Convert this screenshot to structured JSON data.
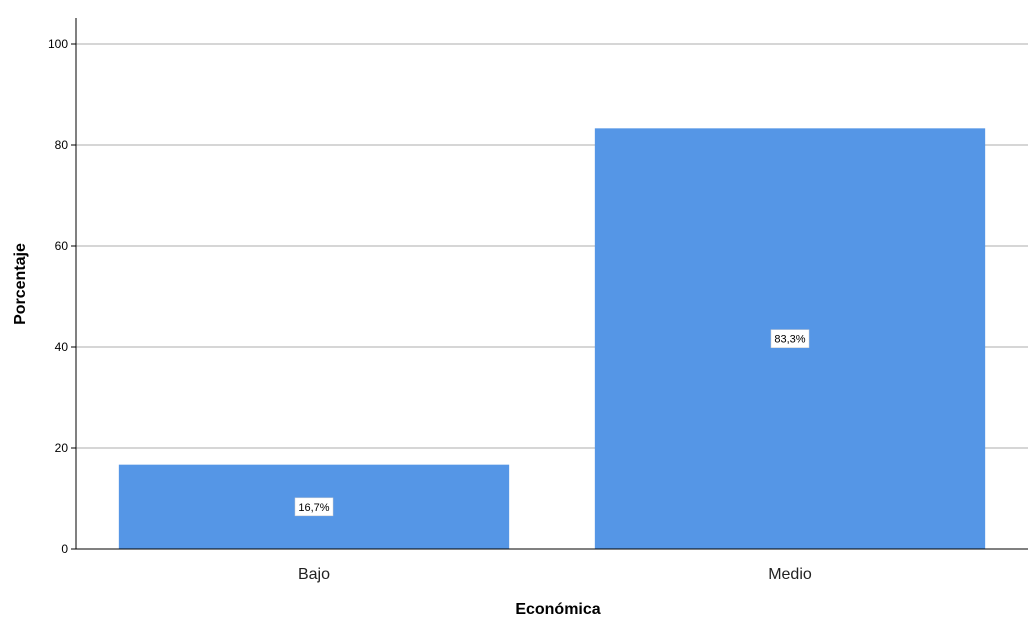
{
  "chart_data": {
    "type": "bar",
    "categories": [
      "Bajo",
      "Medio"
    ],
    "values": [
      16.7,
      83.3
    ],
    "data_labels": [
      "16,7%",
      "83,3%"
    ],
    "xlabel": "Económica",
    "ylabel": "Porcentaje",
    "ylim": [
      0,
      105
    ],
    "yticks": [
      0,
      20,
      40,
      60,
      80,
      100
    ],
    "grid": true,
    "bar_color": "#5596e6"
  }
}
